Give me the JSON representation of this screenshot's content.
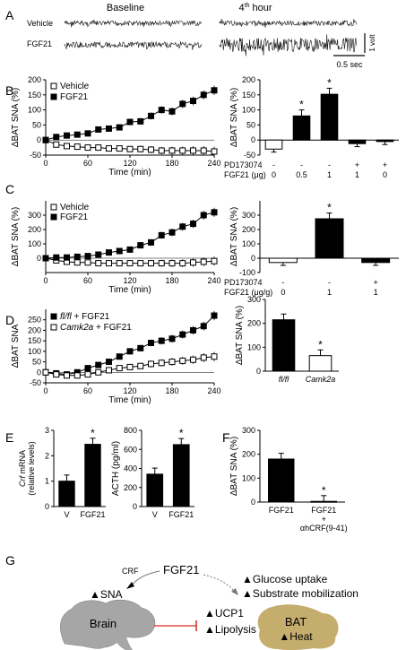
{
  "panel_letters": [
    "A",
    "B",
    "C",
    "D",
    "E",
    "F",
    "G"
  ],
  "panelA": {
    "baseline_label": "Baseline",
    "hour_label": "4",
    "hour_sup": "th",
    "hour_word": "hour",
    "row_labels": [
      "Vehicle",
      "FGF21"
    ],
    "scale_volt": "1 volt",
    "scale_time": "0.5 sec"
  },
  "chart_data": [
    {
      "id": "B-left",
      "type": "line",
      "xlabel": "Time (min)",
      "ylabel": "ΔBAT SNA (%)",
      "ylim": [
        -50,
        200
      ],
      "yticks": [
        -50,
        0,
        50,
        100,
        150,
        200
      ],
      "xticks": [
        0,
        60,
        120,
        180,
        240
      ],
      "x": [
        0,
        15,
        30,
        45,
        60,
        75,
        90,
        105,
        120,
        135,
        150,
        165,
        180,
        195,
        210,
        225,
        240
      ],
      "series": [
        {
          "name": "Vehicle",
          "marker": "open-square",
          "values": [
            0,
            -15,
            -20,
            -22,
            -25,
            -25,
            -28,
            -28,
            -30,
            -30,
            -32,
            -35,
            -35,
            -35,
            -35,
            -35,
            -38
          ]
        },
        {
          "name": "FGF21",
          "marker": "filled-square",
          "values": [
            0,
            10,
            15,
            18,
            22,
            35,
            38,
            42,
            60,
            62,
            80,
            100,
            95,
            120,
            130,
            150,
            165
          ]
        }
      ]
    },
    {
      "id": "B-right",
      "type": "bar",
      "ylabel": "ΔBAT SNA (%)",
      "ylim": [
        -50,
        200
      ],
      "yticks": [
        -50,
        0,
        50,
        100,
        150,
        200
      ],
      "row_labels": [
        "PD173074",
        "FGF21 (μg)"
      ],
      "pd_labels": [
        "-",
        "-",
        "-",
        "+",
        "+"
      ],
      "dose_labels": [
        "0",
        "0.5",
        "1",
        "1",
        "0"
      ],
      "values": [
        -30,
        80,
        152,
        -12,
        -5
      ],
      "fill": [
        "white",
        "black",
        "black",
        "black",
        "black"
      ],
      "significant": [
        false,
        true,
        true,
        false,
        false
      ]
    },
    {
      "id": "C-left",
      "type": "line",
      "xlabel": "Time (min)",
      "ylabel": "ΔBAT SNA (%)",
      "ylim": [
        -100,
        400
      ],
      "yticks": [
        0,
        100,
        200,
        300
      ],
      "xticks": [
        0,
        60,
        120,
        180,
        240
      ],
      "x": [
        0,
        15,
        30,
        45,
        60,
        75,
        90,
        105,
        120,
        135,
        150,
        165,
        180,
        195,
        210,
        225,
        240
      ],
      "series": [
        {
          "name": "Vehicle",
          "marker": "open-square",
          "values": [
            0,
            -15,
            -25,
            -30,
            -30,
            -35,
            -35,
            -35,
            -35,
            -35,
            -35,
            -35,
            -35,
            -35,
            -30,
            -25,
            -20
          ]
        },
        {
          "name": "FGF21",
          "marker": "filled-square",
          "values": [
            0,
            5,
            5,
            10,
            15,
            25,
            40,
            50,
            60,
            90,
            110,
            160,
            180,
            220,
            240,
            300,
            320
          ]
        }
      ]
    },
    {
      "id": "C-right",
      "type": "bar",
      "ylabel": "ΔBAT SNA (%)",
      "ylim": [
        -100,
        400
      ],
      "yticks": [
        -100,
        0,
        100,
        200,
        300
      ],
      "row_labels": [
        "PD173074",
        "FGF21 (μg/g)"
      ],
      "pd_labels": [
        "-",
        "-",
        "+"
      ],
      "dose_labels": [
        "0",
        "1",
        "1"
      ],
      "values": [
        -30,
        275,
        -30
      ],
      "fill": [
        "white",
        "black",
        "black"
      ],
      "significant": [
        false,
        true,
        false
      ]
    },
    {
      "id": "D-left",
      "type": "line",
      "xlabel": "Time (min)",
      "ylabel": "ΔBAT SNA",
      "ylim": [
        -50,
        300
      ],
      "yticks": [
        -50,
        0,
        50,
        100,
        150,
        200,
        250
      ],
      "xticks": [
        0,
        60,
        120,
        180,
        240
      ],
      "x": [
        0,
        15,
        30,
        45,
        60,
        75,
        90,
        105,
        120,
        135,
        150,
        165,
        180,
        195,
        210,
        225,
        240
      ],
      "series": [
        {
          "name": "fl/fl + FGF21",
          "marker": "filled-square",
          "values": [
            0,
            -5,
            -10,
            0,
            20,
            35,
            50,
            75,
            100,
            115,
            140,
            150,
            160,
            180,
            200,
            220,
            270
          ]
        },
        {
          "name": "Camk2a + FGF21",
          "marker": "open-square",
          "values": [
            0,
            -10,
            -15,
            -15,
            -10,
            0,
            10,
            20,
            25,
            30,
            40,
            45,
            50,
            55,
            60,
            70,
            75
          ]
        }
      ]
    },
    {
      "id": "D-right",
      "type": "bar",
      "ylabel": "ΔBAT SNA (%)",
      "ylim": [
        0,
        300
      ],
      "yticks": [
        0,
        100,
        200,
        300
      ],
      "categories": [
        "fl/fl",
        "Camk2a"
      ],
      "values": [
        215,
        65
      ],
      "fill": [
        "black",
        "white"
      ],
      "significant": [
        false,
        true
      ]
    },
    {
      "id": "E-left",
      "type": "bar",
      "ylabel_italic": "Crf",
      "ylabel_rest": " mRNA",
      "ylabel2": "(relative levels)",
      "ylim": [
        0,
        3
      ],
      "yticks": [
        0,
        1,
        2,
        3
      ],
      "categories": [
        "V",
        "FGF21"
      ],
      "values": [
        1.0,
        2.45
      ],
      "fill": [
        "black",
        "black"
      ],
      "significant": [
        false,
        true
      ]
    },
    {
      "id": "E-right",
      "type": "bar",
      "ylabel": "ACTH (pg/ml)",
      "ylim": [
        0,
        800
      ],
      "yticks": [
        0,
        200,
        400,
        600,
        800
      ],
      "categories": [
        "V",
        "FGF21"
      ],
      "values": [
        340,
        650
      ],
      "fill": [
        "black",
        "black"
      ],
      "significant": [
        false,
        true
      ]
    },
    {
      "id": "F",
      "type": "bar",
      "ylabel": "ΔBAT SNA (%)",
      "ylim": [
        0,
        300
      ],
      "yticks": [
        0,
        100,
        200,
        300
      ],
      "categories": [
        "FGF21",
        "FGF21 + αhCRF(9-41)"
      ],
      "cat_lines": [
        [
          "FGF21"
        ],
        [
          "FGF21",
          "+",
          "αhCRF(9-41)"
        ]
      ],
      "values": [
        180,
        3
      ],
      "fill": [
        "black",
        "black"
      ],
      "significant": [
        false,
        true
      ]
    }
  ],
  "legend": {
    "vehicle": "Vehicle",
    "fgf21": "FGF21",
    "fl_italic": "fl/fl",
    "fl_rest": " + FGF21",
    "camk_italic": "Camk2a",
    "camk_rest": " + FGF21"
  },
  "significance_mark": "*",
  "panelG": {
    "fgf21": "FGF21",
    "crf": "CRF",
    "sna": "SNA",
    "glucose": "Glucose uptake",
    "substrate": "Substrate mobilization",
    "ucp1": "UCP1",
    "lipolysis": "Lipolysis",
    "brain": "Brain",
    "bat": "BAT",
    "heat": "Heat",
    "colors": {
      "brain": "#a6a6a6",
      "bat": "#c5ad6e",
      "inhibit": "#d62b20",
      "arrow": "#777777"
    }
  }
}
